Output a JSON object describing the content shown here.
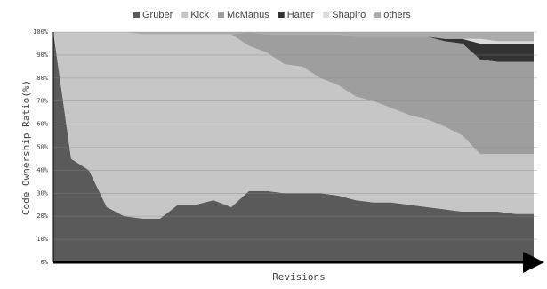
{
  "chart_data": {
    "type": "stacked_area",
    "x_label": "Revisions",
    "y_label": "Code Ownership Ratio(%)",
    "categories": [
      null,
      null,
      null,
      null,
      null,
      null,
      null,
      null,
      null,
      null,
      null,
      null,
      null,
      null,
      null,
      null,
      null,
      null,
      null,
      null,
      null,
      null,
      null,
      null,
      null,
      null,
      null,
      null
    ],
    "series": [
      {
        "name": "Gruber",
        "color": "#5a5a5a",
        "values": [
          100,
          45,
          40,
          24,
          20,
          19,
          19,
          25,
          25,
          27,
          24,
          31,
          31,
          30,
          30,
          30,
          29,
          27,
          26,
          26,
          25,
          24,
          23,
          22,
          22,
          22,
          21,
          21
        ]
      },
      {
        "name": "Kick",
        "color": "#c6c6c6",
        "values": [
          0,
          55,
          60,
          76,
          80,
          80,
          80,
          74,
          74,
          72,
          75,
          63,
          60,
          56,
          55,
          50,
          48,
          45,
          44,
          41,
          39,
          38,
          36,
          33,
          25,
          25,
          26,
          26
        ]
      },
      {
        "name": "McManus",
        "color": "#9e9e9e",
        "values": [
          0,
          0,
          0,
          0,
          0,
          0,
          0,
          0,
          0,
          0,
          0,
          6,
          8,
          13,
          14,
          19,
          22,
          26,
          28,
          31,
          34,
          36,
          37,
          40,
          41,
          40,
          40,
          40
        ]
      },
      {
        "name": "Harter",
        "color": "#333333",
        "values": [
          0,
          0,
          0,
          0,
          0,
          0,
          0,
          0,
          0,
          0,
          0,
          0,
          0,
          0,
          0,
          0,
          0,
          0,
          0,
          0,
          0,
          0,
          1,
          2,
          7,
          8,
          8,
          8
        ]
      },
      {
        "name": "Shapiro",
        "color": "#dcdcdc",
        "values": [
          0,
          0,
          0,
          0,
          0,
          0,
          0,
          0,
          0,
          0,
          0,
          0,
          0,
          0,
          0,
          0,
          0,
          0,
          0,
          0,
          0,
          0,
          0,
          0,
          2,
          1,
          1,
          1
        ]
      },
      {
        "name": "others",
        "color": "#ababab",
        "values": [
          0,
          0,
          0,
          0,
          0,
          1,
          1,
          1,
          1,
          1,
          1,
          0,
          1,
          1,
          1,
          1,
          1,
          2,
          2,
          2,
          2,
          2,
          3,
          3,
          3,
          4,
          4,
          4
        ]
      }
    ],
    "ylim": [
      0,
      100
    ],
    "yticks": [
      {
        "value": 0,
        "label": "0%"
      },
      {
        "value": 10,
        "label": "10%"
      },
      {
        "value": 20,
        "label": "20%"
      },
      {
        "value": 30,
        "label": "30%"
      },
      {
        "value": 40,
        "label": "40%"
      },
      {
        "value": 50,
        "label": "50%"
      },
      {
        "value": 60,
        "label": "60%"
      },
      {
        "value": 70,
        "label": "70%"
      },
      {
        "value": 80,
        "label": "80%"
      },
      {
        "value": 90,
        "label": "90%"
      },
      {
        "value": 100,
        "label": "100%"
      }
    ],
    "grid": true,
    "legend": "top"
  }
}
